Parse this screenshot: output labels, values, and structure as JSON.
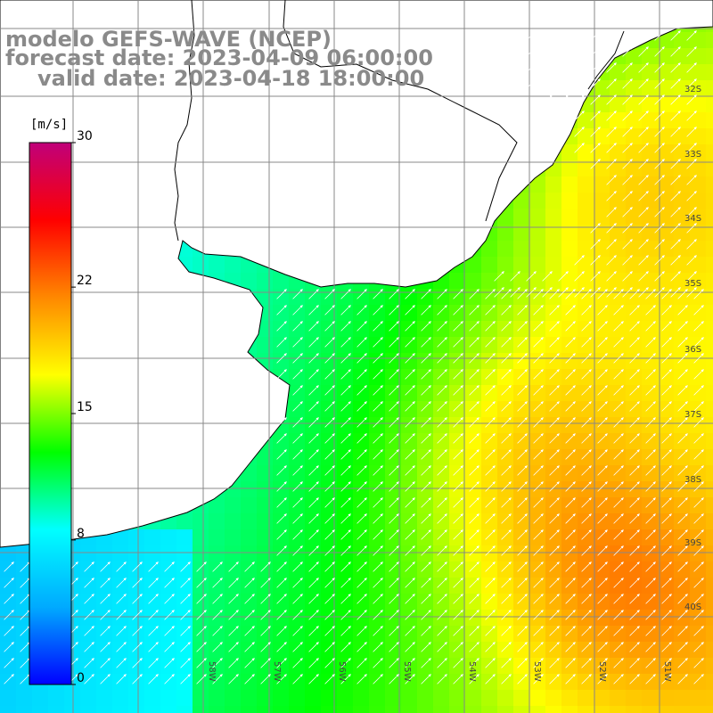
{
  "title": {
    "model": "modelo GEFS-WAVE (NCEP)",
    "forecast": "forecast date: 2023-04-09 06:00:00",
    "valid": "valid date: 2023-04-18 18:00:00"
  },
  "colorbar": {
    "unit": "[m/s]",
    "ticks": [
      {
        "label": "30",
        "value": 30
      },
      {
        "label": "22",
        "value": 22
      },
      {
        "label": "15",
        "value": 15
      },
      {
        "label": "8",
        "value": 8
      },
      {
        "label": "0",
        "value": 0
      }
    ],
    "range": [
      0,
      30
    ],
    "colors": [
      "#0000ff",
      "#00aaff",
      "#00ffff",
      "#00ff00",
      "#ffff00",
      "#ff8800",
      "#ff0000",
      "#c0007a"
    ]
  },
  "axes": {
    "lat_labels": [
      "32S",
      "33S",
      "34S",
      "35S",
      "36S",
      "37S",
      "38S",
      "39S",
      "40S"
    ],
    "lon_labels": [
      "58W",
      "57W",
      "56W",
      "55W",
      "54W",
      "53W",
      "52W",
      "51W"
    ]
  }
}
